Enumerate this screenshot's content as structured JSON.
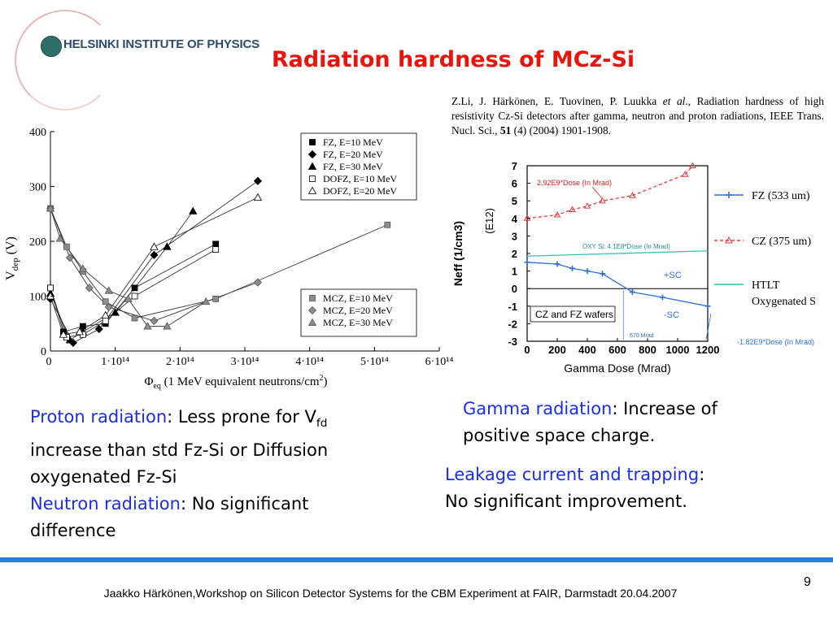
{
  "header": {
    "logo_text": "HELSINKI INSTITUTE OF PHYSICS",
    "title": "Radiation hardness of MCz-Si"
  },
  "reference": {
    "authors": "Z.Li, J. Härkönen, E. Tuovinen, P. Luukka ",
    "etal": "et al",
    "text1": "., Radiation hardness of high resistivity Cz-Si detectors after gamma, neutron and proton radiations, IEEE Trans. Nucl. Sci., ",
    "volume": "51",
    "text2": " (4) (2004) 1901-1908."
  },
  "chart_data": [
    {
      "type": "line",
      "title": "",
      "xlabel": "Φeq (1 MeV equivalent neutrons/cm2)",
      "ylabel": "Vdep (V)",
      "x_axis_unit": "1e14 neq/cm2",
      "xlim": [
        0,
        6
      ],
      "ylim": [
        0,
        400
      ],
      "x_tick_labels": [
        "0",
        "1·10¹⁴",
        "2·10¹⁴",
        "3·10¹⁴",
        "4·10¹⁴",
        "5·10¹⁴",
        "6·10¹⁴"
      ],
      "y_tick_labels": [
        "0",
        "100",
        "200",
        "300",
        "400"
      ],
      "series": [
        {
          "name": "FZ, E=10 MeV",
          "marker": "square-filled",
          "x": [
            0,
            0.2,
            0.5,
            0.85,
            1.3,
            2.55
          ],
          "y": [
            115,
            35,
            45,
            50,
            115,
            195
          ]
        },
        {
          "name": "FZ, E=20 MeV",
          "marker": "diamond-filled",
          "x": [
            0,
            0.35,
            0.75,
            1.6,
            3.2
          ],
          "y": [
            95,
            15,
            40,
            175,
            310
          ]
        },
        {
          "name": "FZ, E=30 MeV",
          "marker": "triangle-filled",
          "x": [
            0,
            0.3,
            0.5,
            1.0,
            1.8,
            2.2
          ],
          "y": [
            105,
            20,
            35,
            70,
            190,
            255
          ]
        },
        {
          "name": "DOFZ, E=10 MeV",
          "marker": "square-open",
          "x": [
            0,
            0.25,
            0.5,
            0.85,
            1.3,
            2.55
          ],
          "y": [
            115,
            25,
            30,
            55,
            100,
            185
          ]
        },
        {
          "name": "DOFZ, E=20 MeV",
          "marker": "triangle-open",
          "x": [
            0,
            0.2,
            0.45,
            0.85,
            1.6,
            3.2
          ],
          "y": [
            100,
            30,
            35,
            65,
            190,
            280
          ]
        },
        {
          "name": "MCZ, E=10 MeV",
          "marker": "square-filled-gray",
          "x": [
            0,
            0.25,
            0.5,
            0.85,
            1.3,
            2.55,
            5.2
          ],
          "y": [
            260,
            190,
            145,
            90,
            60,
            95,
            230
          ]
        },
        {
          "name": "MCZ, E=20 MeV",
          "marker": "diamond-filled-gray",
          "x": [
            0,
            0.3,
            0.6,
            0.9,
            1.6,
            3.2
          ],
          "y": [
            260,
            170,
            115,
            80,
            55,
            125
          ]
        },
        {
          "name": "MCZ, E=30 MeV",
          "marker": "triangle-filled-gray",
          "x": [
            0,
            0.15,
            0.5,
            0.9,
            1.2,
            1.5,
            1.8,
            2.4
          ],
          "y": [
            260,
            205,
            150,
            110,
            95,
            45,
            45,
            90
          ]
        }
      ],
      "legend_groups": [
        [
          "FZ, E=10 MeV",
          "FZ, E=20 MeV",
          "FZ, E=30 MeV",
          "DOFZ, E=10 MeV",
          "DOFZ, E=20 MeV"
        ],
        [
          "MCZ, E=10 MeV",
          "MCZ, E=20 MeV",
          "MCZ, E=30 MeV"
        ]
      ]
    },
    {
      "type": "line",
      "title": "",
      "xlabel": "Gamma Dose (Mrad)",
      "ylabel": "Neff (1/cm3)",
      "ylabel_unit": "(E12)",
      "xlim": [
        0,
        1200
      ],
      "ylim": [
        -3,
        7
      ],
      "x_tick_labels": [
        "0",
        "200",
        "400",
        "600",
        "800",
        "1000",
        "1200"
      ],
      "y_tick_labels": [
        "7",
        "6",
        "5",
        "4",
        "3",
        "2",
        "1",
        "0",
        "-1",
        "-2",
        "-3"
      ],
      "series": [
        {
          "name": "FZ (533 um)",
          "color": "#2b6fd6",
          "x": [
            0,
            200,
            300,
            400,
            500,
            700,
            900,
            1200
          ],
          "y": [
            1.5,
            1.4,
            1.15,
            1.0,
            0.85,
            -0.2,
            -0.5,
            -1.0
          ]
        },
        {
          "name": "CZ (375 um)",
          "color": "#e23a3a",
          "x": [
            0,
            200,
            300,
            400,
            500,
            700,
            1050,
            1100
          ],
          "y": [
            4.0,
            4.2,
            4.5,
            4.7,
            5.0,
            5.3,
            6.5,
            7.0
          ]
        },
        {
          "name": "HTLT Oxygenated S",
          "color": "#36c0b3",
          "x": [
            0,
            1200
          ],
          "y": [
            1.85,
            2.15
          ]
        }
      ],
      "annotations": {
        "cz_dose": "2.92E9*Dose (In Mrad)",
        "oxy": "OXY Si: 4.1E8*Dose (In Mrad)",
        "plus_sc": "+SC",
        "minus_sc": "-SC",
        "wafers": "CZ and FZ wafers",
        "fz_dose": "-1.82E9*Dose (In Mrad)",
        "mrad": "670 Mrad"
      }
    }
  ],
  "text_blocks": {
    "proton_label": "Proton radiation",
    "proton_text_a": ": Less prone for V",
    "proton_sub": "fd",
    "proton_text_b": "increase than std Fz-Si or Diffusion",
    "proton_text_c": "oxygenated Fz-Si",
    "neutron_label": "Neutron radiation",
    "neutron_text_a": ": No significant",
    "neutron_text_b": "difference",
    "gamma_label": "Gamma radiation",
    "gamma_text_a": ": Increase of",
    "gamma_text_b": "positive space charge.",
    "leakage_label": "Leakage current and trapping",
    "leakage_text_a": ":",
    "leakage_text_b": "No significant improvement."
  },
  "footer": {
    "text": "Jaakko Härkönen,Workshop on Silicon Detector Systems for the CBM Experiment at FAIR, Darmstadt 20.04.2007",
    "page_number": "9"
  },
  "colors": {
    "title": "#e8150c",
    "highlight": "#1a2ee8",
    "bar": "#2a7de0"
  }
}
